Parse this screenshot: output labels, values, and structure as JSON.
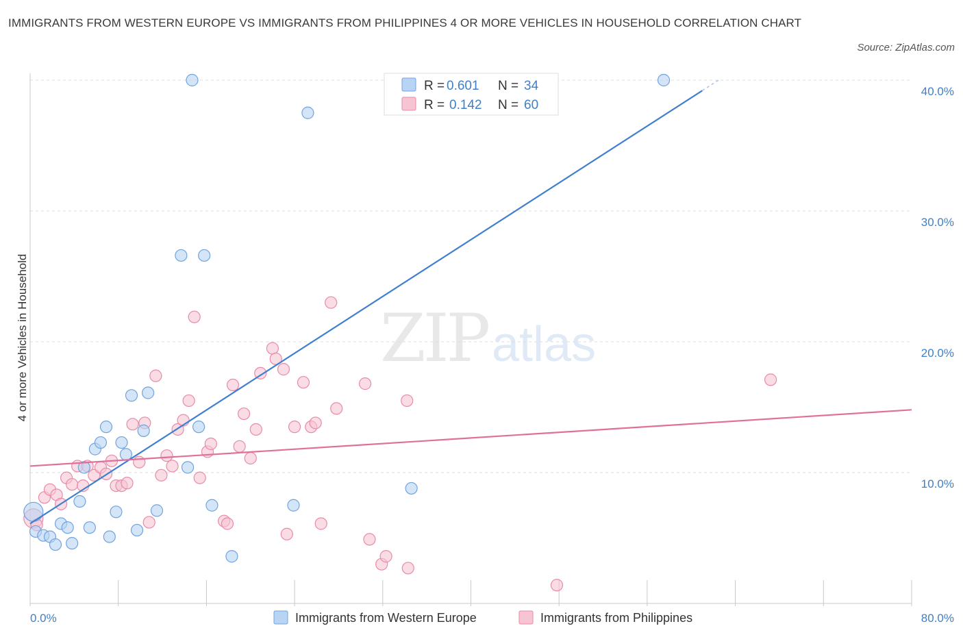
{
  "chart_data": {
    "type": "scatter",
    "title": "IMMIGRANTS FROM WESTERN EUROPE VS IMMIGRANTS FROM PHILIPPINES 4 OR MORE VEHICLES IN HOUSEHOLD CORRELATION CHART",
    "source": "Source: ZipAtlas.com",
    "ylabel": "4 or more Vehicles in Household",
    "xlabel": "",
    "xlim": [
      0,
      80
    ],
    "ylim": [
      0,
      40
    ],
    "x_ticks": [
      "0.0%",
      "80.0%"
    ],
    "y_ticks": [
      {
        "value": 10,
        "label": "10.0%"
      },
      {
        "value": 20,
        "label": "20.0%"
      },
      {
        "value": 30,
        "label": "30.0%"
      },
      {
        "value": 40,
        "label": "40.0%"
      }
    ],
    "legend": [
      {
        "r_label": "R =",
        "r_value": "0.601",
        "n_label": "N =",
        "n_value": "34"
      },
      {
        "r_label": "R =",
        "r_value": "0.142",
        "n_label": "N =",
        "n_value": "60"
      }
    ],
    "series": [
      {
        "name": "Immigrants from Western Europe",
        "color": "#6fa3e0",
        "fill": "#b9d3f3",
        "line_color": "#3f7fd0",
        "trend": {
          "x0": 0,
          "y0": 6.1,
          "x1": 61,
          "y1": 39.2,
          "dash_to_x": 62.5
        },
        "points": [
          [
            0.3,
            7.0
          ],
          [
            0.5,
            5.5
          ],
          [
            1.2,
            5.2
          ],
          [
            1.8,
            5.1
          ],
          [
            2.3,
            4.5
          ],
          [
            2.8,
            6.1
          ],
          [
            3.4,
            5.8
          ],
          [
            3.8,
            4.6
          ],
          [
            4.5,
            7.8
          ],
          [
            4.9,
            10.4
          ],
          [
            5.4,
            5.8
          ],
          [
            5.9,
            11.8
          ],
          [
            6.4,
            12.3
          ],
          [
            6.9,
            13.5
          ],
          [
            7.2,
            5.1
          ],
          [
            7.8,
            7.0
          ],
          [
            8.3,
            12.3
          ],
          [
            8.7,
            11.4
          ],
          [
            9.2,
            15.9
          ],
          [
            9.7,
            5.6
          ],
          [
            10.3,
            13.2
          ],
          [
            10.7,
            16.1
          ],
          [
            11.5,
            7.1
          ],
          [
            13.7,
            26.6
          ],
          [
            14.3,
            10.4
          ],
          [
            14.7,
            40.0
          ],
          [
            15.3,
            13.5
          ],
          [
            15.8,
            26.6
          ],
          [
            16.5,
            7.5
          ],
          [
            18.3,
            3.6
          ],
          [
            23.9,
            7.5
          ],
          [
            25.2,
            37.5
          ],
          [
            34.6,
            8.8
          ],
          [
            57.5,
            40.0
          ]
        ]
      },
      {
        "name": "Immigrants from Philippines",
        "color": "#e98aa8",
        "fill": "#f7c4d3",
        "line_color": "#e0709a",
        "trend": {
          "x0": 0,
          "y0": 10.5,
          "x1": 80,
          "y1": 14.8
        },
        "points": [
          [
            0.3,
            6.5
          ],
          [
            0.6,
            6.0
          ],
          [
            1.3,
            8.1
          ],
          [
            1.8,
            8.7
          ],
          [
            2.4,
            8.3
          ],
          [
            2.8,
            7.6
          ],
          [
            3.3,
            9.6
          ],
          [
            3.8,
            9.1
          ],
          [
            4.3,
            10.5
          ],
          [
            4.8,
            9.0
          ],
          [
            5.2,
            10.5
          ],
          [
            5.8,
            9.8
          ],
          [
            6.4,
            10.4
          ],
          [
            6.9,
            9.9
          ],
          [
            7.4,
            10.9
          ],
          [
            7.8,
            9.0
          ],
          [
            8.3,
            9.0
          ],
          [
            8.8,
            9.2
          ],
          [
            9.3,
            13.7
          ],
          [
            9.9,
            10.8
          ],
          [
            10.4,
            13.8
          ],
          [
            10.8,
            6.2
          ],
          [
            11.4,
            17.4
          ],
          [
            11.9,
            9.8
          ],
          [
            12.4,
            11.3
          ],
          [
            12.9,
            10.5
          ],
          [
            13.4,
            13.3
          ],
          [
            13.9,
            14.0
          ],
          [
            14.4,
            15.5
          ],
          [
            14.9,
            21.9
          ],
          [
            15.4,
            9.6
          ],
          [
            16.1,
            11.6
          ],
          [
            16.4,
            12.2
          ],
          [
            17.6,
            6.3
          ],
          [
            17.9,
            6.1
          ],
          [
            18.4,
            16.7
          ],
          [
            19.0,
            12.0
          ],
          [
            19.4,
            14.5
          ],
          [
            20.0,
            11.1
          ],
          [
            20.5,
            13.3
          ],
          [
            20.9,
            17.6
          ],
          [
            22.0,
            19.5
          ],
          [
            22.3,
            18.7
          ],
          [
            23.0,
            17.9
          ],
          [
            23.3,
            5.3
          ],
          [
            24.0,
            13.5
          ],
          [
            24.8,
            16.9
          ],
          [
            25.5,
            13.5
          ],
          [
            25.9,
            13.8
          ],
          [
            26.4,
            6.1
          ],
          [
            27.3,
            23.0
          ],
          [
            27.8,
            14.9
          ],
          [
            30.4,
            16.8
          ],
          [
            30.8,
            4.9
          ],
          [
            31.9,
            3.0
          ],
          [
            32.3,
            3.6
          ],
          [
            34.2,
            15.5
          ],
          [
            34.3,
            2.7
          ],
          [
            47.8,
            1.4
          ],
          [
            67.2,
            17.1
          ]
        ]
      }
    ]
  }
}
